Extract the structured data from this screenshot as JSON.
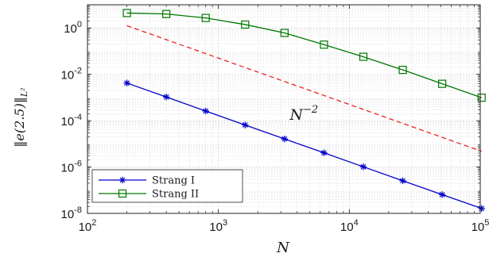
{
  "chart_data": {
    "type": "line",
    "x_scale": "log",
    "y_scale": "log",
    "xlim": [
      100,
      100000
    ],
    "ylim": [
      1e-08,
      10
    ],
    "xlabel": "N",
    "ylabel": "‖e(2.5)‖",
    "ylabel_sub": "L²",
    "grid": true,
    "legend_position": "bottom-left",
    "x_ticks": [
      {
        "base": "10",
        "exp": "2",
        "value": 100
      },
      {
        "base": "10",
        "exp": "3",
        "value": 1000
      },
      {
        "base": "10",
        "exp": "4",
        "value": 10000
      },
      {
        "base": "10",
        "exp": "5",
        "value": 100000
      }
    ],
    "y_ticks": [
      {
        "base": "10",
        "exp": "-8",
        "value": 1e-08
      },
      {
        "base": "10",
        "exp": "-6",
        "value": 1e-06
      },
      {
        "base": "10",
        "exp": "-4",
        "value": 0.0001
      },
      {
        "base": "10",
        "exp": "-2",
        "value": 0.01
      },
      {
        "base": "10",
        "exp": "0",
        "value": 1
      }
    ],
    "series": [
      {
        "name": "Strang I",
        "color": "#0000cc",
        "marker": "asterisk",
        "x": [
          200,
          400,
          800,
          1600,
          3200,
          6400,
          12800,
          25600,
          51200,
          102400
        ],
        "y": [
          0.0042,
          0.00105,
          0.00026,
          6.5e-05,
          1.63e-05,
          4.1e-06,
          1.02e-06,
          2.55e-07,
          6.45e-08,
          1.63e-08
        ]
      },
      {
        "name": "Strang II",
        "color": "#007700",
        "marker": "square",
        "x": [
          200,
          400,
          800,
          1600,
          3200,
          6400,
          12800,
          25600,
          51200,
          102400
        ],
        "y": [
          4.4,
          4.0,
          2.7,
          1.4,
          0.61,
          0.19,
          0.057,
          0.0155,
          0.0039,
          0.00098
        ]
      }
    ],
    "reference_line": {
      "color": "#ee2222",
      "style": "dashed",
      "x": [
        200,
        102400
      ],
      "y": [
        1.25,
        4.77e-06
      ]
    },
    "annotations": [
      {
        "base": "N",
        "exp": "−2",
        "x": 4500,
        "y": 0.00011
      }
    ]
  }
}
